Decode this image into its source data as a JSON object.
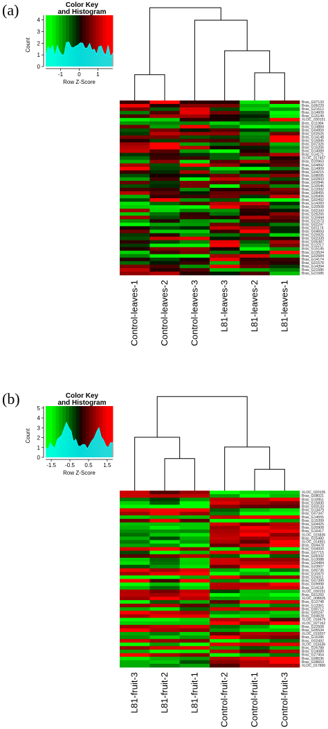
{
  "chart_data": [
    {
      "panel": "(a)",
      "type": "heatmap",
      "color_key": {
        "title_line1": "Color Key",
        "title_line2": "and Histogram",
        "ylabel": "Count",
        "xlabel": "Row Z-Score",
        "x_ticks": [
          "-1",
          "0",
          "1"
        ],
        "x_tick_values": [
          -1,
          0,
          1
        ],
        "x_range": [
          -1.8,
          1.8
        ],
        "y_ticks": [
          "0",
          "1",
          "2",
          "3",
          "4"
        ],
        "y_range": [
          0,
          4.4
        ],
        "colors": [
          "#00ff00",
          "#000000",
          "#ff0000"
        ],
        "hist_color": "#00ffff"
      },
      "columns": [
        "Control-leaves-1",
        "Control-leaves-2",
        "Control-leaves-3",
        "L81-leaves-3",
        "L81-leaves-2",
        "L81-leaves-1"
      ],
      "rows": [
        "Bras_G07133",
        "Bras_G06229",
        "Bras_G21612",
        "Bras_G14609",
        "Bras_G15149",
        "XLOC_030151",
        "Bras_G11984",
        "Bras_G14884",
        "Bras_G04959",
        "Bras_G02626",
        "Bras_G14148",
        "Bras_G15845",
        "Bras_G07326",
        "Bras_G15206",
        "Bras_G14089",
        "Bras_G14171",
        "XLOC_017457",
        "Bras_G20963",
        "Bras_G04892",
        "Bras_G14909",
        "Bras_G04215",
        "Bras_G08095",
        "Bras_G02833",
        "Bras_G02846",
        "Bras_G10546",
        "Bras_G13392",
        "Bras_G08455",
        "Bras_G26906",
        "Bras_G02492",
        "Bras_G14283",
        "Bras_G20508",
        "Bras_G02343",
        "Bras_G26256",
        "Bras_G10444",
        "Bras_G21573",
        "Bras_G02247",
        "Bras_G01174",
        "Bras_G04693",
        "Bras_G25925",
        "Bras_G02339",
        "Bras_G05387",
        "Bras_G12217",
        "Bras_G15145",
        "Bras_G13534",
        "Bras_G02684",
        "Bras_G14174",
        "Bras_G01578",
        "Bras_G14394",
        "Bras_G21586",
        "Bras_G21585"
      ]
    },
    {
      "panel": "(b)",
      "type": "heatmap",
      "color_key": {
        "title_line1": "Color Key",
        "title_line2": "and Histogram",
        "ylabel": "Count",
        "xlabel": "Row Z-Score",
        "x_ticks": [
          "-1.5",
          "-0.5",
          "0.5",
          "1.5"
        ],
        "x_tick_values": [
          -1.5,
          -0.5,
          0.5,
          1.5
        ],
        "x_range": [
          -1.8,
          1.8
        ],
        "y_ticks": [
          "0",
          "1",
          "2",
          "3",
          "4",
          "5"
        ],
        "y_range": [
          0,
          5.2
        ],
        "colors": [
          "#00ff00",
          "#000000",
          "#ff0000"
        ],
        "hist_color": "#00ffff"
      },
      "columns": [
        "L81-fruit-3",
        "L81-fruit-2",
        "L81-fruit-1",
        "Control-fruit-2",
        "Control-fruit-1",
        "Control-fruit-3"
      ],
      "rows": [
        "XLOC_020105",
        "Bras_G08021",
        "Bras_G10951",
        "Bras_G15830",
        "Bras_G03133",
        "Bras_G13479",
        "Bras_G07347",
        "Bras_G14555",
        "Bras_G15399",
        "Bras_G04425",
        "Bras_G20908",
        "Bras_G16417",
        "XLOC_015836",
        "Bras_G25480",
        "XLOC_014951",
        "Bras_G04478",
        "Bras_G04000",
        "Bras_G07715",
        "Bras_G05332",
        "Bras_G13088",
        "Bras_G24484",
        "Bras_G23607",
        "Bras_G00736",
        "Bras_G10470",
        "Bras_G24311",
        "Bras_G07399",
        "Bras_G09998",
        "Bras_G14118",
        "XLOC_030151",
        "Bras_G01260",
        "XLOC_008605",
        "Bras_G12748",
        "Bras_G12061",
        "Bras_G00712",
        "Bras_G00247",
        "Bras_G04628",
        "XLOC_018479",
        "XLOC_027162",
        "Bras_G22508",
        "Bras_G05534",
        "XLOC_019207",
        "Bras_G15286",
        "Bras_G02492",
        "XLOC_015536",
        "Bras_G26788",
        "Bras_G14089",
        "Bras_G27454",
        "Bras_G08536",
        "Bras_G08653",
        "XLOC_017890"
      ]
    }
  ]
}
